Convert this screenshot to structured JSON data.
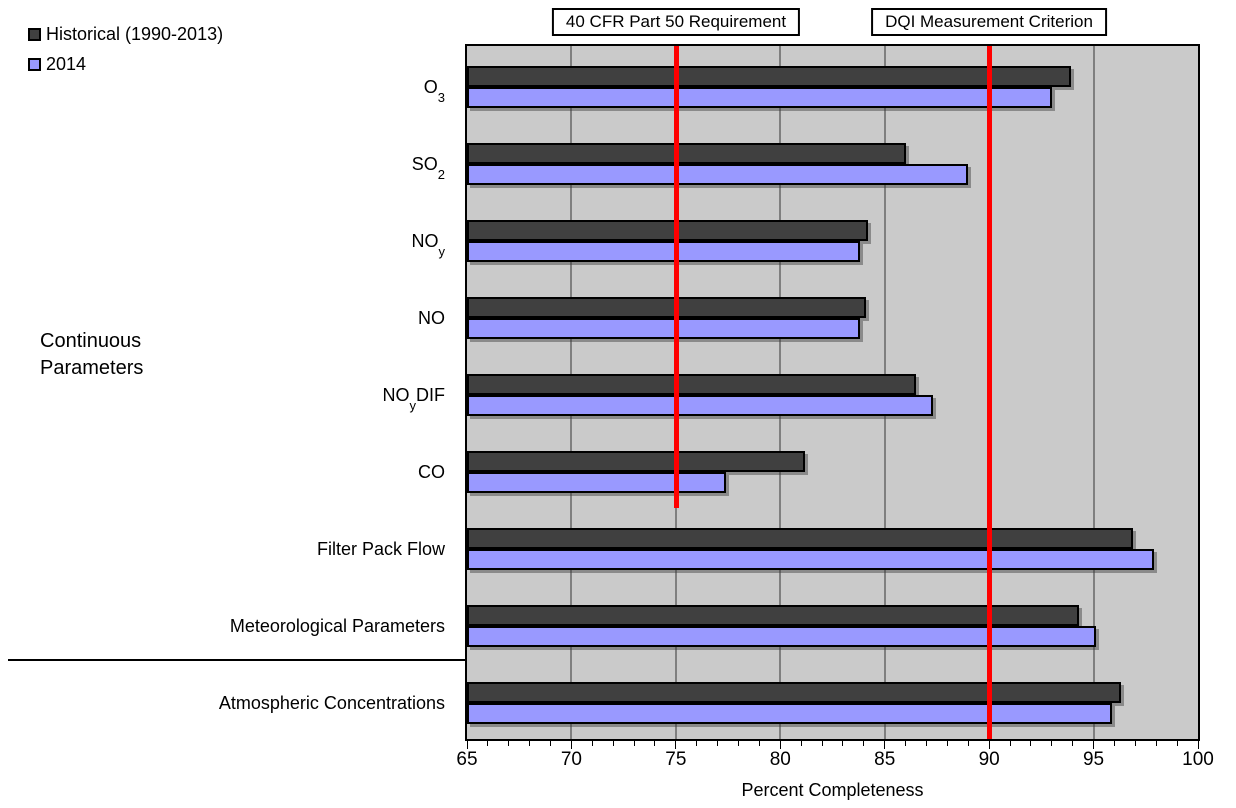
{
  "chart_data": {
    "type": "bar",
    "orientation": "horizontal",
    "xlabel": "Percent Completeness",
    "xlim": [
      65,
      100
    ],
    "xticks": [
      65,
      70,
      75,
      80,
      85,
      90,
      95,
      100
    ],
    "minor_tick_step": 1,
    "grid": "vertical gridlines every 5 units",
    "plot_background": "#CACACA",
    "gridline_color": "#7F7F7F",
    "legend_position": "top-left",
    "group_label": "Continuous\nParameters",
    "categories": [
      {
        "pre": "O",
        "sub": "3",
        "post": ""
      },
      {
        "pre": "SO",
        "sub": "2",
        "post": ""
      },
      {
        "pre": "NO",
        "sub": "y",
        "post": ""
      },
      {
        "pre": "NO",
        "sub": "",
        "post": ""
      },
      {
        "pre": "NO",
        "sub": "y",
        "post": "DIF"
      },
      {
        "pre": "CO",
        "sub": "",
        "post": ""
      },
      {
        "pre": "Filter Pack Flow",
        "sub": "",
        "post": ""
      },
      {
        "pre": "Meteorological Parameters",
        "sub": "",
        "post": ""
      },
      {
        "pre": "Atmospheric Concentrations",
        "sub": "",
        "post": ""
      }
    ],
    "series": [
      {
        "name": "Historical (1990-2013)",
        "color": "#404040",
        "values": [
          93.9,
          86.0,
          84.2,
          84.1,
          86.5,
          81.2,
          96.9,
          94.3,
          96.3
        ]
      },
      {
        "name": "2014",
        "color": "#9999FF",
        "values": [
          93.0,
          89.0,
          83.8,
          83.8,
          87.3,
          77.4,
          97.9,
          95.1,
          95.9
        ]
      }
    ],
    "reference_lines": [
      {
        "label": "40 CFR Part 50 Requirement",
        "x": 75,
        "color": "#FF0000",
        "extent": "continuous-parameters-only"
      },
      {
        "label": "DQI Measurement Criterion",
        "x": 90,
        "color": "#FF0000",
        "extent": "full-height"
      }
    ]
  }
}
